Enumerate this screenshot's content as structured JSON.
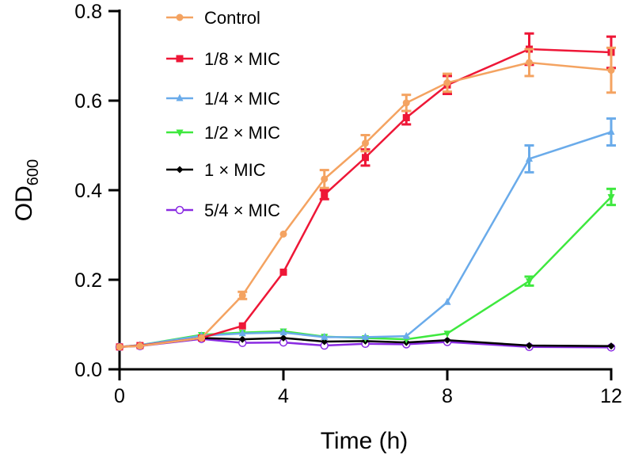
{
  "chart_data": {
    "type": "line",
    "title": "",
    "xlabel": "Time (h)",
    "ylabel_main": "OD",
    "ylabel_sub": "600",
    "xlim": [
      0,
      12
    ],
    "ylim": [
      0,
      0.8
    ],
    "xticks": [
      0,
      4,
      8,
      12
    ],
    "xtick_labels": [
      "0",
      "4",
      "8",
      "12"
    ],
    "yticks": [
      0,
      0.2,
      0.4,
      0.6,
      0.8
    ],
    "ytick_labels": [
      "0.0",
      "0.2",
      "0.4",
      "0.6",
      "0.8"
    ],
    "grid": false,
    "legend_position": "top-left",
    "x": [
      0,
      0.5,
      2,
      3,
      4,
      5,
      6,
      7,
      8,
      10,
      12
    ],
    "series": [
      {
        "name": "Control",
        "color": "#F4A361",
        "marker": "circle",
        "values": [
          0.05,
          0.052,
          0.07,
          0.165,
          0.302,
          0.425,
          0.505,
          0.595,
          0.64,
          0.685,
          0.668
        ],
        "errors": [
          0.003,
          0.003,
          0.004,
          0.008,
          0.004,
          0.02,
          0.018,
          0.018,
          0.02,
          0.03,
          0.05
        ]
      },
      {
        "name": "1/8 × MIC",
        "color": "#EE1737",
        "marker": "square",
        "values": [
          0.05,
          0.053,
          0.07,
          0.097,
          0.217,
          0.39,
          0.473,
          0.562,
          0.635,
          0.715,
          0.708
        ],
        "errors": [
          0.003,
          0.003,
          0.003,
          0.004,
          0.004,
          0.01,
          0.018,
          0.015,
          0.02,
          0.035,
          0.035
        ]
      },
      {
        "name": "1/4 × MIC",
        "color": "#6AABEA",
        "marker": "triangle-up",
        "values": [
          0.05,
          0.054,
          0.075,
          0.08,
          0.082,
          0.072,
          0.072,
          0.074,
          0.15,
          0.47,
          0.53
        ],
        "errors": [
          0.002,
          0.002,
          0.003,
          0.003,
          0.003,
          0.003,
          0.003,
          0.003,
          0.004,
          0.03,
          0.03
        ]
      },
      {
        "name": "1/2 × MIC",
        "color": "#3EE83E",
        "marker": "triangle-down",
        "values": [
          0.05,
          0.054,
          0.077,
          0.082,
          0.085,
          0.073,
          0.07,
          0.067,
          0.08,
          0.197,
          0.385
        ],
        "errors": [
          0.002,
          0.002,
          0.003,
          0.003,
          0.003,
          0.003,
          0.003,
          0.003,
          0.003,
          0.01,
          0.018
        ]
      },
      {
        "name": "1 ×  MIC",
        "color": "#000000",
        "marker": "diamond",
        "values": [
          0.05,
          0.053,
          0.07,
          0.067,
          0.07,
          0.062,
          0.063,
          0.06,
          0.065,
          0.053,
          0.052
        ],
        "errors": [
          0.002,
          0.002,
          0.002,
          0.002,
          0.002,
          0.002,
          0.002,
          0.002,
          0.002,
          0.002,
          0.002
        ]
      },
      {
        "name": "5/4 × MIC",
        "color": "#8A2BE2",
        "marker": "open-circle",
        "values": [
          0.05,
          0.052,
          0.068,
          0.059,
          0.06,
          0.053,
          0.057,
          0.056,
          0.061,
          0.05,
          0.049
        ],
        "errors": [
          0.002,
          0.002,
          0.002,
          0.002,
          0.002,
          0.002,
          0.002,
          0.002,
          0.002,
          0.002,
          0.002
        ]
      }
    ]
  }
}
